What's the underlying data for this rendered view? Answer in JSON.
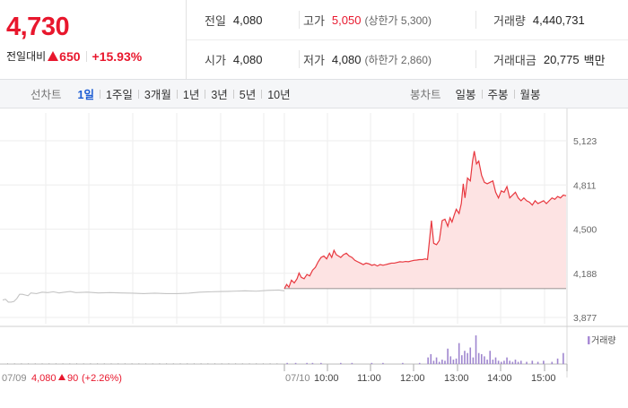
{
  "header": {
    "current_price": "4,730",
    "change_label": "전일대비",
    "change_value": "650",
    "change_pct": "+15.93%",
    "stats": {
      "prev_close": {
        "label": "전일",
        "value": "4,080"
      },
      "high": {
        "label": "고가",
        "value": "5,050",
        "sub": "(상한가 5,300)"
      },
      "volume": {
        "label": "거래량",
        "value": "4,440,731"
      },
      "open": {
        "label": "시가",
        "value": "4,080"
      },
      "low": {
        "label": "저가",
        "value": "4,080",
        "sub": "(하한가 2,860)"
      },
      "trade_value": {
        "label": "거래대금",
        "value": "20,775",
        "unit": "백만"
      }
    }
  },
  "line_tabs": {
    "title": "선차트",
    "items": [
      "1일",
      "1주일",
      "3개월",
      "1년",
      "3년",
      "5년",
      "10년"
    ],
    "active": 0
  },
  "candle_tabs": {
    "title": "봉차트",
    "items": [
      "일봉",
      "주봉",
      "월봉"
    ]
  },
  "chart_data": {
    "type": "line",
    "y_ticks": [
      "5,123",
      "4,811",
      "4,500",
      "4,188",
      "3,877"
    ],
    "ylim": [
      3877,
      5123
    ],
    "x_labels": [
      "07/10",
      "10:00",
      "11:00",
      "12:00",
      "13:00",
      "14:00",
      "15:00"
    ],
    "left_footer": {
      "date": "07/09",
      "price": "4,080",
      "change": "90",
      "pct": "(+2.26%)"
    },
    "volume_legend": "거래량",
    "prev_day_series": [
      [
        0,
        4000
      ],
      [
        1,
        4005
      ],
      [
        2,
        3985
      ],
      [
        3,
        3985
      ],
      [
        4,
        3990
      ],
      [
        5,
        4010
      ],
      [
        6,
        4040
      ],
      [
        7,
        4040
      ],
      [
        8,
        4035
      ],
      [
        9,
        4030
      ],
      [
        10,
        4050
      ],
      [
        12,
        4045
      ],
      [
        14,
        4055
      ],
      [
        16,
        4052
      ],
      [
        18,
        4058
      ],
      [
        20,
        4050
      ],
      [
        22,
        4055
      ],
      [
        24,
        4060
      ],
      [
        26,
        4052
      ],
      [
        30,
        4055
      ],
      [
        34,
        4050
      ],
      [
        38,
        4052
      ],
      [
        42,
        4050
      ],
      [
        46,
        4048
      ],
      [
        50,
        4045
      ],
      [
        54,
        4048
      ],
      [
        58,
        4045
      ],
      [
        62,
        4045
      ],
      [
        66,
        4048
      ],
      [
        70,
        4055
      ],
      [
        74,
        4058
      ],
      [
        78,
        4060
      ],
      [
        82,
        4062
      ],
      [
        86,
        4065
      ],
      [
        90,
        4062
      ],
      [
        94,
        4068
      ],
      [
        98,
        4070
      ],
      [
        100,
        4065
      ]
    ],
    "today_series": [
      [
        0,
        4080
      ],
      [
        0.8,
        4110
      ],
      [
        1.6,
        4090
      ],
      [
        2.5,
        4140
      ],
      [
        3.5,
        4120
      ],
      [
        4.5,
        4150
      ],
      [
        5.2,
        4190
      ],
      [
        6,
        4160
      ],
      [
        7,
        4150
      ],
      [
        8,
        4180
      ],
      [
        9,
        4170
      ],
      [
        10,
        4210
      ],
      [
        11,
        4230
      ],
      [
        12,
        4270
      ],
      [
        13,
        4300
      ],
      [
        14,
        4310
      ],
      [
        15,
        4290
      ],
      [
        16,
        4330
      ],
      [
        16.8,
        4300
      ],
      [
        17.6,
        4350
      ],
      [
        18.4,
        4320
      ],
      [
        19.2,
        4310
      ],
      [
        20,
        4300
      ],
      [
        21,
        4320
      ],
      [
        22,
        4330
      ],
      [
        23,
        4310
      ],
      [
        24,
        4300
      ],
      [
        25,
        4280
      ],
      [
        26,
        4270
      ],
      [
        27,
        4260
      ],
      [
        28,
        4250
      ],
      [
        29,
        4260
      ],
      [
        30,
        4255
      ],
      [
        31,
        4245
      ],
      [
        32,
        4250
      ],
      [
        33,
        4240
      ],
      [
        34,
        4250
      ],
      [
        35,
        4245
      ],
      [
        36,
        4250
      ],
      [
        37,
        4255
      ],
      [
        38,
        4260
      ],
      [
        39,
        4260
      ],
      [
        40,
        4265
      ],
      [
        41,
        4270
      ],
      [
        42,
        4268
      ],
      [
        43,
        4272
      ],
      [
        44,
        4270
      ],
      [
        45,
        4275
      ],
      [
        46,
        4280
      ],
      [
        47,
        4282
      ],
      [
        48,
        4285
      ],
      [
        49,
        4285
      ],
      [
        50,
        4290
      ],
      [
        50.8,
        4285
      ],
      [
        51.5,
        4420
      ],
      [
        52.2,
        4560
      ],
      [
        53,
        4400
      ],
      [
        54,
        4390
      ],
      [
        55,
        4420
      ],
      [
        56,
        4560
      ],
      [
        57,
        4570
      ],
      [
        58,
        4520
      ],
      [
        58.8,
        4580
      ],
      [
        59.5,
        4550
      ],
      [
        60.3,
        4600
      ],
      [
        61,
        4640
      ],
      [
        62,
        4610
      ],
      [
        62.8,
        4680
      ],
      [
        63.5,
        4820
      ],
      [
        64.1,
        4720
      ],
      [
        65,
        4860
      ],
      [
        66,
        4840
      ],
      [
        66.8,
        4980
      ],
      [
        67.4,
        5050
      ],
      [
        68.2,
        4960
      ],
      [
        69,
        4980
      ],
      [
        70,
        4880
      ],
      [
        71,
        4830
      ],
      [
        72,
        4820
      ],
      [
        73,
        4830
      ],
      [
        74,
        4840
      ],
      [
        75,
        4760
      ],
      [
        76,
        4720
      ],
      [
        77,
        4770
      ],
      [
        78,
        4760
      ],
      [
        79,
        4800
      ],
      [
        80,
        4720
      ],
      [
        81,
        4740
      ],
      [
        82,
        4760
      ],
      [
        83,
        4720
      ],
      [
        84,
        4700
      ],
      [
        85,
        4720
      ],
      [
        86,
        4700
      ],
      [
        87,
        4690
      ],
      [
        88,
        4670
      ],
      [
        89,
        4700
      ],
      [
        90,
        4680
      ],
      [
        91,
        4690
      ],
      [
        92,
        4700
      ],
      [
        93,
        4680
      ],
      [
        94,
        4700
      ],
      [
        95,
        4720
      ],
      [
        96,
        4710
      ],
      [
        97,
        4730
      ],
      [
        98,
        4720
      ],
      [
        99,
        4740
      ],
      [
        100,
        4735
      ]
    ],
    "volume_bars": [
      [
        1,
        1
      ],
      [
        4,
        1
      ],
      [
        8,
        1
      ],
      [
        10,
        1
      ],
      [
        13,
        1
      ],
      [
        20,
        1
      ],
      [
        24,
        1
      ],
      [
        31,
        1
      ],
      [
        35,
        1
      ],
      [
        42,
        1
      ],
      [
        48,
        1
      ],
      [
        51,
        6
      ],
      [
        52,
        9
      ],
      [
        53,
        3
      ],
      [
        54,
        6
      ],
      [
        55,
        2
      ],
      [
        56,
        4
      ],
      [
        57,
        3
      ],
      [
        58,
        14
      ],
      [
        59,
        7
      ],
      [
        60,
        4
      ],
      [
        61,
        5
      ],
      [
        62,
        19
      ],
      [
        63,
        8
      ],
      [
        64,
        12
      ],
      [
        65,
        10
      ],
      [
        66,
        15
      ],
      [
        67,
        6
      ],
      [
        68,
        26
      ],
      [
        69,
        10
      ],
      [
        70,
        9
      ],
      [
        71,
        7
      ],
      [
        72,
        4
      ],
      [
        73,
        12
      ],
      [
        74,
        4
      ],
      [
        75,
        6
      ],
      [
        76,
        3
      ],
      [
        77,
        2
      ],
      [
        78,
        3
      ],
      [
        79,
        6
      ],
      [
        80,
        3
      ],
      [
        81,
        2
      ],
      [
        82,
        4
      ],
      [
        83,
        2
      ],
      [
        84,
        3
      ],
      [
        86,
        2
      ],
      [
        88,
        3
      ],
      [
        90,
        2
      ],
      [
        92,
        3
      ],
      [
        95,
        2
      ],
      [
        97,
        5
      ],
      [
        99,
        10
      ]
    ]
  }
}
